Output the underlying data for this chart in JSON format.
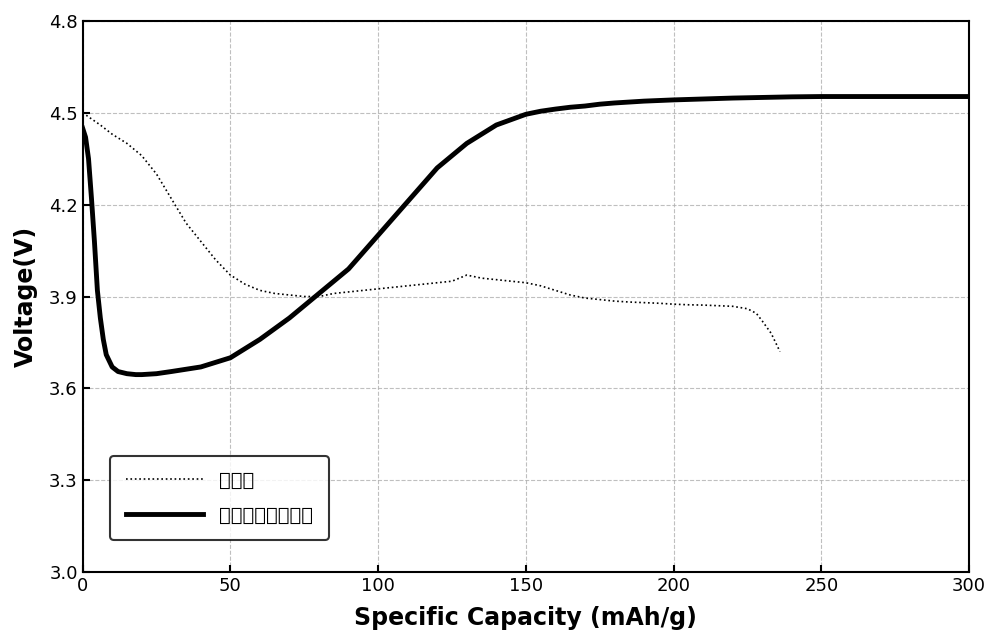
{
  "title": "",
  "xlabel": "Specific Capacity (mAh/g)",
  "ylabel": "Voltage(V)",
  "xlim": [
    0,
    300
  ],
  "ylim": [
    3.0,
    4.8
  ],
  "xticks": [
    0,
    50,
    100,
    150,
    200,
    250,
    300
  ],
  "yticks": [
    3.0,
    3.3,
    3.6,
    3.9,
    4.2,
    4.5,
    4.8
  ],
  "background_color": "#ffffff",
  "grid_color": "#b0b0b0",
  "legend_labels": [
    "魈酸锂",
    "富锂三元层状材料"
  ],
  "dotted_x": [
    0,
    3,
    6,
    10,
    15,
    20,
    25,
    30,
    35,
    40,
    45,
    50,
    55,
    60,
    65,
    70,
    75,
    80,
    85,
    90,
    95,
    100,
    105,
    110,
    115,
    120,
    125,
    130,
    135,
    140,
    145,
    150,
    155,
    160,
    165,
    170,
    175,
    180,
    185,
    190,
    195,
    200,
    205,
    210,
    215,
    220,
    225,
    228,
    230,
    233,
    236
  ],
  "dotted_y": [
    4.5,
    4.48,
    4.46,
    4.43,
    4.4,
    4.36,
    4.3,
    4.22,
    4.14,
    4.08,
    4.02,
    3.97,
    3.94,
    3.92,
    3.91,
    3.905,
    3.9,
    3.9,
    3.91,
    3.915,
    3.92,
    3.925,
    3.93,
    3.935,
    3.94,
    3.945,
    3.95,
    3.97,
    3.96,
    3.955,
    3.95,
    3.945,
    3.935,
    3.92,
    3.905,
    3.895,
    3.89,
    3.885,
    3.882,
    3.88,
    3.878,
    3.875,
    3.873,
    3.872,
    3.87,
    3.868,
    3.86,
    3.845,
    3.82,
    3.78,
    3.72
  ],
  "solid_x": [
    0,
    1,
    2,
    3,
    4,
    5,
    6,
    7,
    8,
    10,
    12,
    15,
    18,
    20,
    25,
    30,
    40,
    50,
    60,
    70,
    80,
    90,
    100,
    110,
    120,
    130,
    140,
    150,
    155,
    160,
    165,
    170,
    175,
    180,
    185,
    190,
    195,
    200,
    210,
    220,
    230,
    240,
    250,
    260,
    270,
    280,
    290,
    300
  ],
  "solid_y": [
    4.45,
    4.42,
    4.35,
    4.22,
    4.08,
    3.92,
    3.83,
    3.76,
    3.71,
    3.67,
    3.655,
    3.648,
    3.645,
    3.645,
    3.648,
    3.655,
    3.67,
    3.7,
    3.76,
    3.83,
    3.91,
    3.99,
    4.1,
    4.21,
    4.32,
    4.4,
    4.46,
    4.495,
    4.505,
    4.512,
    4.518,
    4.522,
    4.528,
    4.532,
    4.535,
    4.538,
    4.54,
    4.542,
    4.545,
    4.548,
    4.55,
    4.552,
    4.553,
    4.553,
    4.553,
    4.553,
    4.553,
    4.553
  ]
}
